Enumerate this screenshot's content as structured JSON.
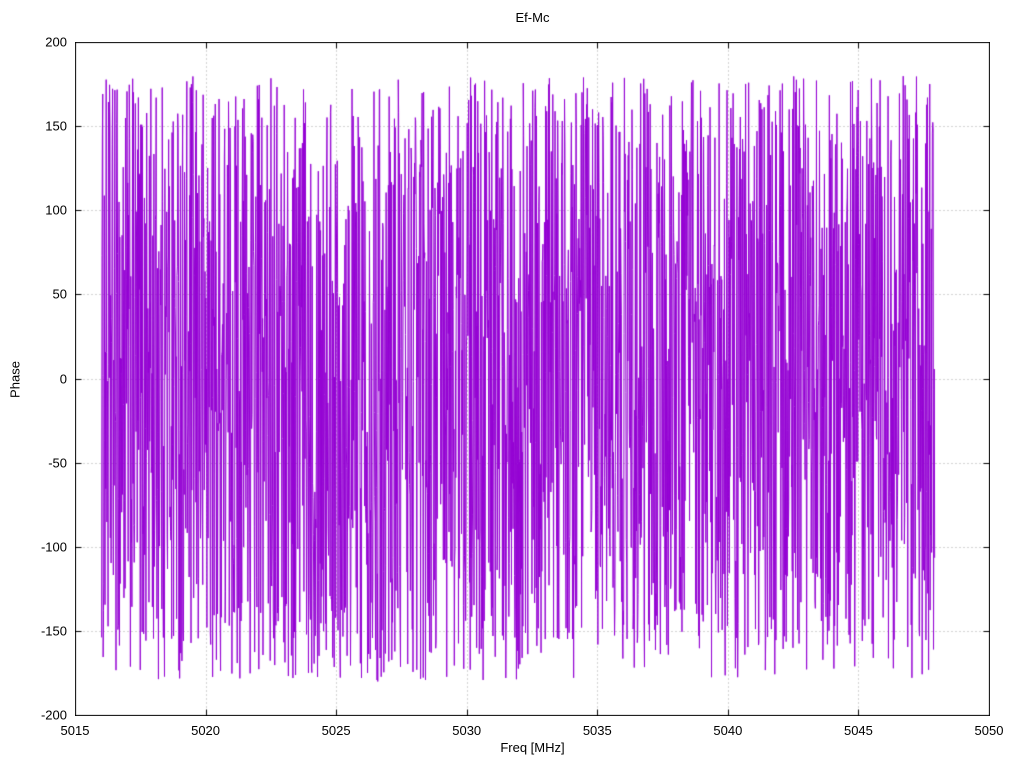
{
  "chart_data": {
    "type": "line",
    "title": "Ef-Mc",
    "xlabel": "Freq [MHz]",
    "ylabel": "Phase",
    "xlim": [
      5015,
      5050
    ],
    "ylim": [
      -200,
      200
    ],
    "x_ticks": [
      5015,
      5020,
      5025,
      5030,
      5035,
      5040,
      5045,
      5050
    ],
    "y_ticks": [
      -200,
      -150,
      -100,
      -50,
      0,
      50,
      100,
      150,
      200
    ],
    "grid": true,
    "grid_style": "dotted",
    "legend_position": "none",
    "series": [
      {
        "name": "Ef-Mc",
        "color": "#9400d3",
        "description": "Densely sampled wrapped phase (degrees), uniformly scattered noise between -180 and +180 connected by line segments",
        "x_start": 5016.0,
        "x_end": 5047.9,
        "n_points": 2200,
        "y_min": -180,
        "y_max": 180,
        "seed": 1234
      }
    ],
    "colors": {
      "line": "#9400d3",
      "grid": "#a6a6a6",
      "border": "#000000",
      "background": "#ffffff"
    }
  }
}
